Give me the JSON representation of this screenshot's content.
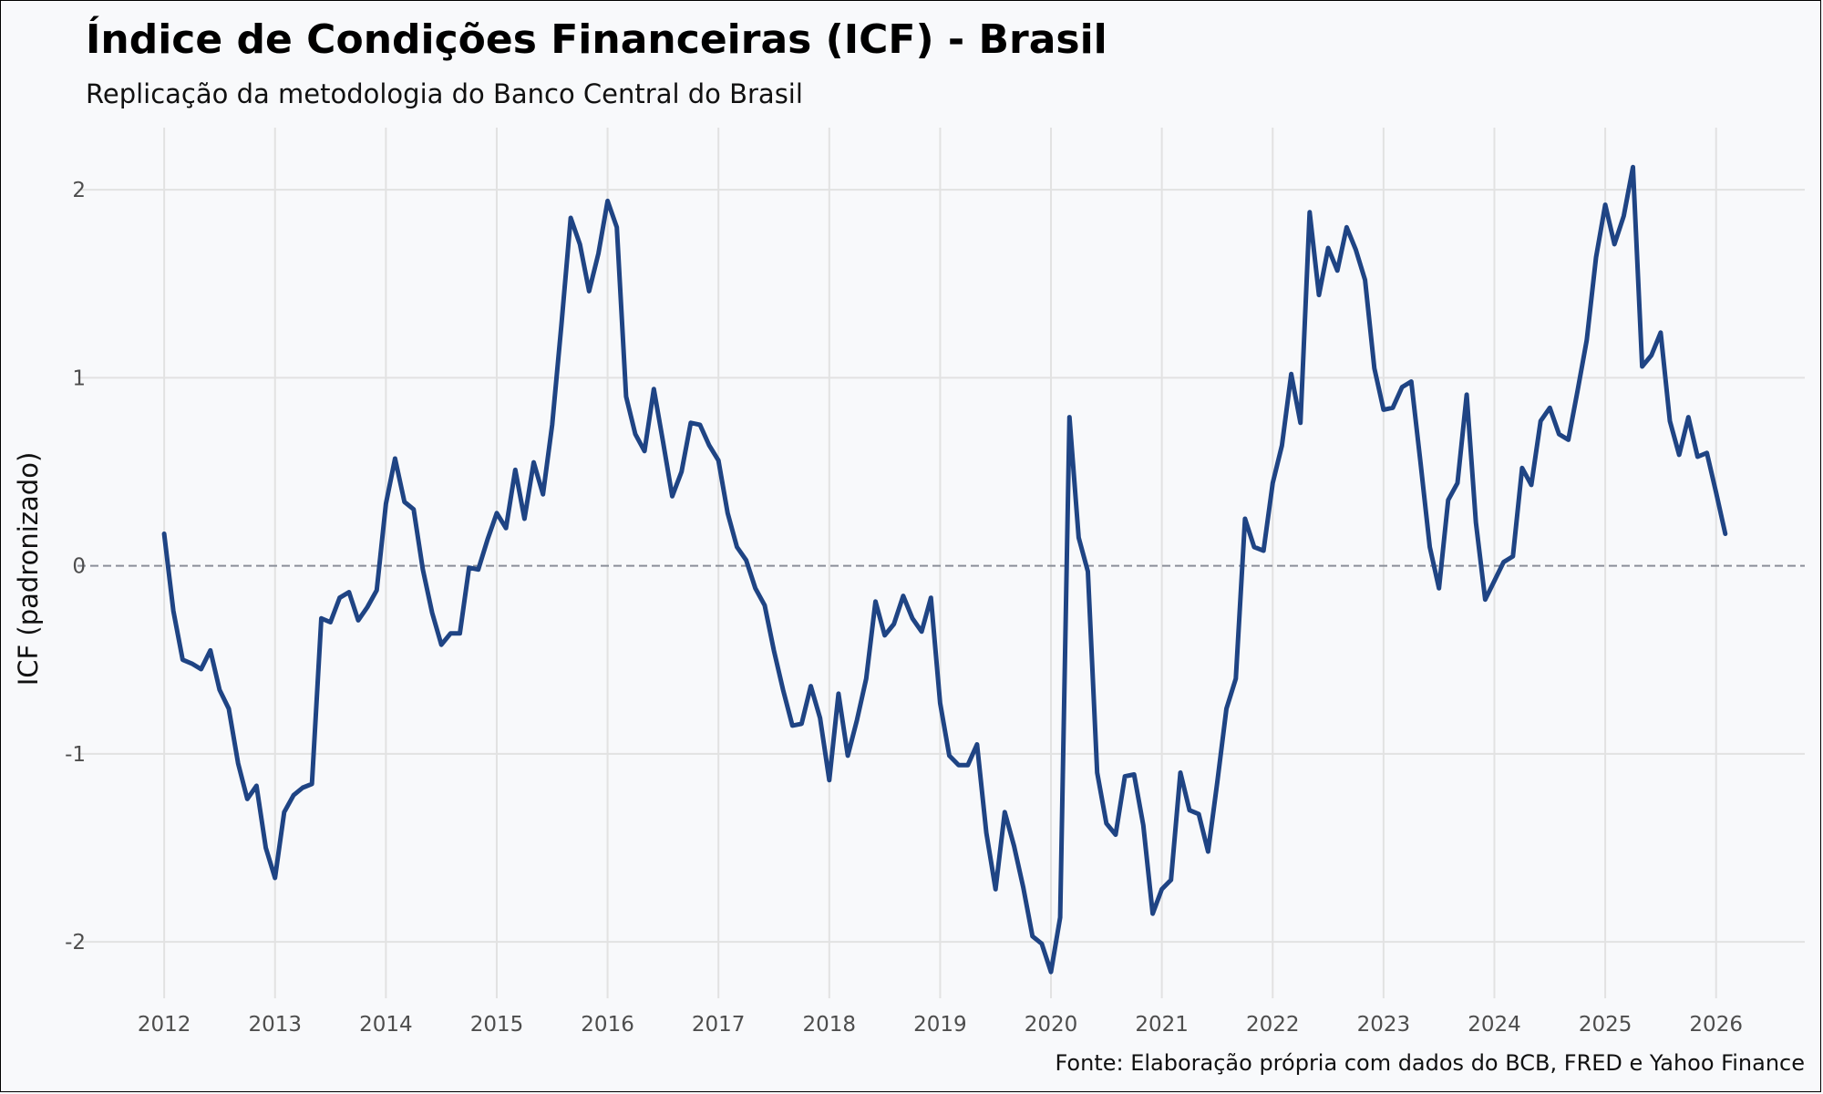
{
  "title": "Índice de Condições Financeiras (ICF) - Brasil",
  "subtitle": "Replicação da metodologia do Banco Central do Brasil",
  "caption": "Fonte: Elaboração própria com dados do BCB, FRED e Yahoo Finance",
  "chart_data": {
    "type": "line",
    "title": "Índice de Condições Financeiras (ICF) - Brasil",
    "subtitle": "Replicação da metodologia do Banco Central do Brasil",
    "xlabel": "",
    "ylabel": "ICF (padronizado)",
    "xlim": [
      2011.3,
      2026.8
    ],
    "ylim": [
      -2.3,
      2.33
    ],
    "x_ticks": [
      2012,
      2013,
      2014,
      2015,
      2016,
      2017,
      2018,
      2019,
      2020,
      2021,
      2022,
      2023,
      2024,
      2025,
      2026
    ],
    "x_tick_labels": [
      "2012",
      "2013",
      "2014",
      "2015",
      "2016",
      "2017",
      "2018",
      "2019",
      "2020",
      "2021",
      "2022",
      "2023",
      "2024",
      "2025",
      "2026"
    ],
    "y_ticks": [
      -2,
      -1,
      0,
      1,
      2
    ],
    "y_tick_labels": [
      "-2",
      "-1",
      "0",
      "1",
      "2"
    ],
    "reference_line": {
      "y": 0,
      "style": "dashed"
    },
    "grid": true,
    "line_color": "#1f4484",
    "series": [
      {
        "name": "ICF",
        "x": [
          2012.0,
          2012.083,
          2012.167,
          2012.25,
          2012.333,
          2012.417,
          2012.5,
          2012.583,
          2012.667,
          2012.75,
          2012.833,
          2012.917,
          2013.0,
          2013.083,
          2013.167,
          2013.25,
          2013.333,
          2013.417,
          2013.5,
          2013.583,
          2013.667,
          2013.75,
          2013.833,
          2013.917,
          2014.0,
          2014.083,
          2014.167,
          2014.25,
          2014.333,
          2014.417,
          2014.5,
          2014.583,
          2014.667,
          2014.75,
          2014.833,
          2014.917,
          2015.0,
          2015.083,
          2015.167,
          2015.25,
          2015.333,
          2015.417,
          2015.5,
          2015.583,
          2015.667,
          2015.75,
          2015.833,
          2015.917,
          2016.0,
          2016.083,
          2016.167,
          2016.25,
          2016.333,
          2016.417,
          2016.5,
          2016.583,
          2016.667,
          2016.75,
          2016.833,
          2016.917,
          2017.0,
          2017.083,
          2017.167,
          2017.25,
          2017.333,
          2017.417,
          2017.5,
          2017.583,
          2017.667,
          2017.75,
          2017.833,
          2017.917,
          2018.0,
          2018.083,
          2018.167,
          2018.25,
          2018.333,
          2018.417,
          2018.5,
          2018.583,
          2018.667,
          2018.75,
          2018.833,
          2018.917,
          2019.0,
          2019.083,
          2019.167,
          2019.25,
          2019.333,
          2019.417,
          2019.5,
          2019.583,
          2019.667,
          2019.75,
          2019.833,
          2019.917,
          2020.0,
          2020.083,
          2020.167,
          2020.25,
          2020.333,
          2020.417,
          2020.5,
          2020.583,
          2020.667,
          2020.75,
          2020.833,
          2020.917,
          2021.0,
          2021.083,
          2021.167,
          2021.25,
          2021.333,
          2021.417,
          2021.5,
          2021.583,
          2021.667,
          2021.75,
          2021.833,
          2021.917,
          2022.0,
          2022.083,
          2022.167,
          2022.25,
          2022.333,
          2022.417,
          2022.5,
          2022.583,
          2022.667,
          2022.75,
          2022.833,
          2022.917,
          2023.0,
          2023.083,
          2023.167,
          2023.25,
          2023.333,
          2023.417,
          2023.5,
          2023.583,
          2023.667,
          2023.75,
          2023.833,
          2023.917,
          2024.0,
          2024.083,
          2024.167,
          2024.25,
          2024.333,
          2024.417,
          2024.5,
          2024.583,
          2024.667,
          2024.75,
          2024.833,
          2024.917,
          2025.0,
          2025.083,
          2025.167,
          2025.25,
          2025.333,
          2025.417,
          2025.5,
          2025.583,
          2025.667,
          2025.75,
          2025.833,
          2025.917,
          2026.0,
          2026.083
        ],
        "values": [
          0.17,
          -0.24,
          -0.5,
          -0.52,
          -0.55,
          -0.45,
          -0.66,
          -0.76,
          -1.05,
          -1.24,
          -1.17,
          -1.5,
          -1.66,
          -1.31,
          -1.22,
          -1.18,
          -1.16,
          -0.28,
          -0.3,
          -0.17,
          -0.14,
          -0.29,
          -0.22,
          -0.13,
          0.33,
          0.57,
          0.34,
          0.3,
          -0.02,
          -0.25,
          -0.42,
          -0.36,
          -0.36,
          -0.01,
          -0.02,
          0.14,
          0.28,
          0.2,
          0.51,
          0.25,
          0.55,
          0.38,
          0.75,
          1.28,
          1.85,
          1.71,
          1.46,
          1.66,
          1.94,
          1.8,
          0.9,
          0.7,
          0.61,
          0.94,
          0.66,
          0.37,
          0.5,
          0.76,
          0.75,
          0.64,
          0.56,
          0.28,
          0.1,
          0.03,
          -0.12,
          -0.21,
          -0.45,
          -0.66,
          -0.85,
          -0.84,
          -0.64,
          -0.81,
          -1.14,
          -0.68,
          -1.01,
          -0.82,
          -0.6,
          -0.19,
          -0.37,
          -0.31,
          -0.16,
          -0.28,
          -0.35,
          -0.17,
          -0.73,
          -1.01,
          -1.06,
          -1.06,
          -0.95,
          -1.42,
          -1.72,
          -1.31,
          -1.49,
          -1.71,
          -1.97,
          -2.01,
          -2.16,
          -1.87,
          0.79,
          0.15,
          -0.03,
          -1.1,
          -1.37,
          -1.43,
          -1.12,
          -1.11,
          -1.38,
          -1.85,
          -1.72,
          -1.67,
          -1.1,
          -1.3,
          -1.32,
          -1.52,
          -1.15,
          -0.76,
          -0.6,
          0.25,
          0.1,
          0.08,
          0.44,
          0.64,
          1.02,
          0.76,
          1.88,
          1.44,
          1.69,
          1.57,
          1.8,
          1.68,
          1.52,
          1.05,
          0.83,
          0.84,
          0.95,
          0.98,
          0.55,
          0.1,
          -0.12,
          0.35,
          0.44,
          0.91,
          0.23,
          -0.18,
          -0.08,
          0.02,
          0.05,
          0.52,
          0.43,
          0.77,
          0.84,
          0.7,
          0.67,
          0.93,
          1.2,
          1.64,
          1.92,
          1.71,
          1.86,
          2.12,
          1.06,
          1.12,
          1.24,
          0.77,
          0.59,
          0.79,
          0.58,
          0.6,
          0.39,
          0.17
        ]
      }
    ]
  }
}
